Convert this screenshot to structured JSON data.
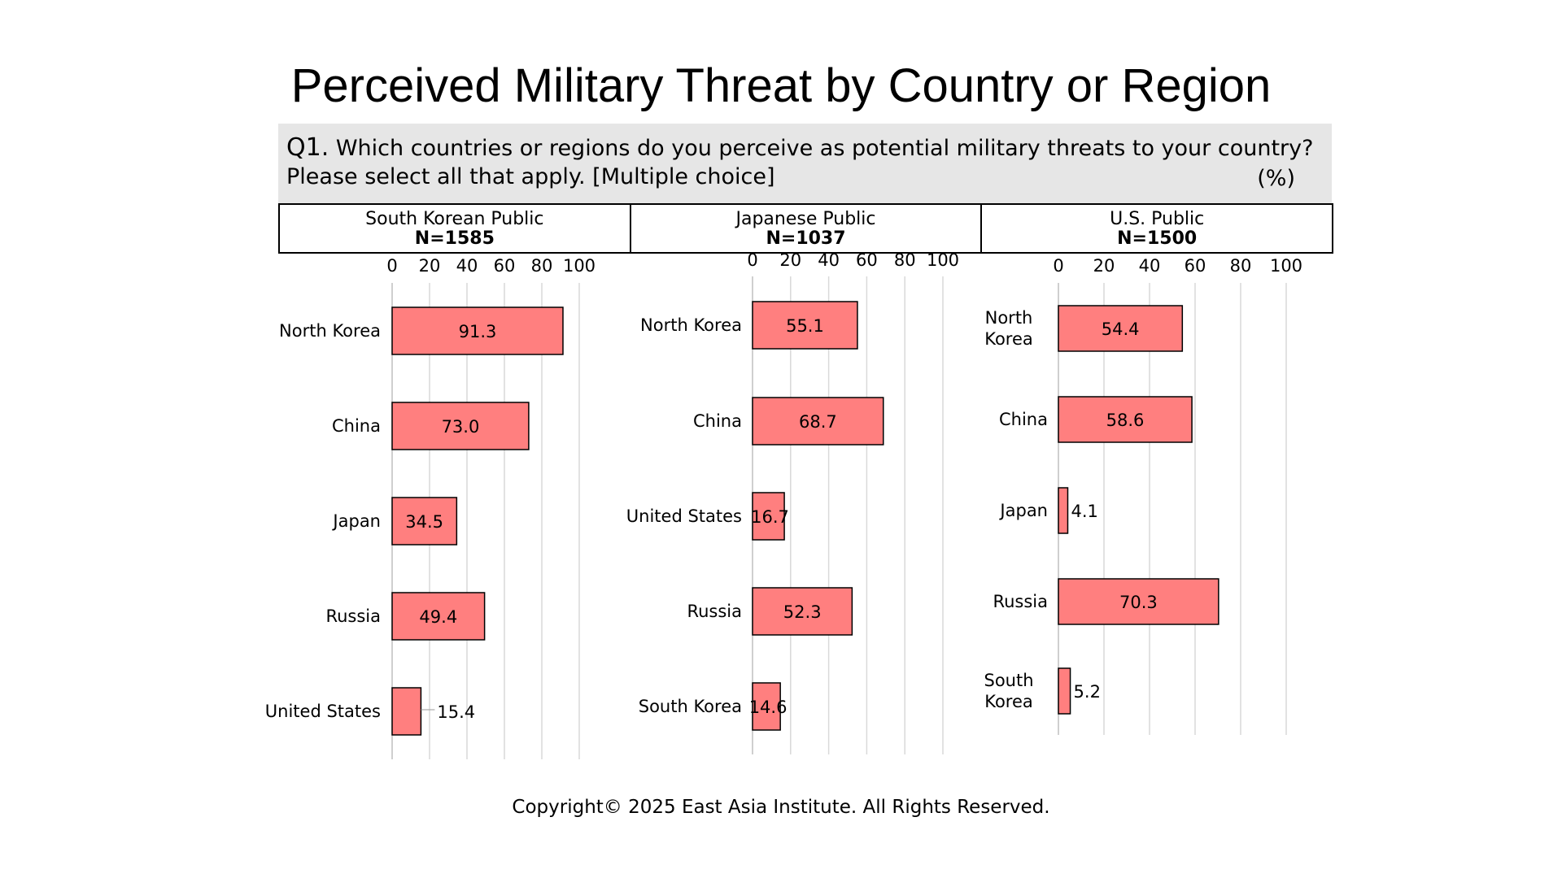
{
  "title": "Perceived Military Threat by Country or Region",
  "question": {
    "number": "Q1.",
    "text": "Which countries or regions do you perceive as potential military threats to your country?",
    "instruction": "Please select all that apply. [Multiple choice]",
    "unit": "(%)"
  },
  "columns": [
    {
      "name": "South Korean Public",
      "n": "N=1585"
    },
    {
      "name": "Japanese Public",
      "n": "N=1037"
    },
    {
      "name": "U.S. Public",
      "n": "N=1500"
    }
  ],
  "chart_data": [
    {
      "type": "bar",
      "orientation": "horizontal",
      "panel": "South Korean Public",
      "categories": [
        "North Korea",
        "China",
        "Japan",
        "Russia",
        "United States"
      ],
      "values": [
        91.3,
        73.0,
        34.5,
        49.4,
        15.4
      ],
      "value_labels": [
        "91.3",
        "73.0",
        "34.5",
        "49.4",
        "15.4"
      ],
      "xlim": [
        0,
        100
      ],
      "ticks": [
        "0",
        "20",
        "40",
        "60",
        "80",
        "100"
      ]
    },
    {
      "type": "bar",
      "orientation": "horizontal",
      "panel": "Japanese Public",
      "categories": [
        "North Korea",
        "China",
        "United States",
        "Russia",
        "South Korea"
      ],
      "values": [
        55.1,
        68.7,
        16.7,
        52.3,
        14.6
      ],
      "value_labels": [
        "55.1",
        "68.7",
        "16.7",
        "52.3",
        "14.6"
      ],
      "xlim": [
        0,
        100
      ],
      "ticks": [
        "0",
        "20",
        "40",
        "60",
        "80",
        "100"
      ]
    },
    {
      "type": "bar",
      "orientation": "horizontal",
      "panel": "U.S. Public",
      "categories": [
        "North Korea",
        "China",
        "Japan",
        "Russia",
        "South Korea"
      ],
      "values": [
        54.4,
        58.6,
        4.1,
        70.3,
        5.2
      ],
      "value_labels": [
        "54.4",
        "58.6",
        "4.1",
        "70.3",
        "5.2"
      ],
      "xlim": [
        0,
        100
      ],
      "ticks": [
        "0",
        "20",
        "40",
        "60",
        "80",
        "100"
      ]
    }
  ],
  "colors": {
    "bar_fill": "#ff7f7f",
    "bar_stroke": "#000000",
    "grid": "#d9d9d9"
  },
  "copyright": "Copyright© 2025 East Asia Institute. All Rights Reserved."
}
